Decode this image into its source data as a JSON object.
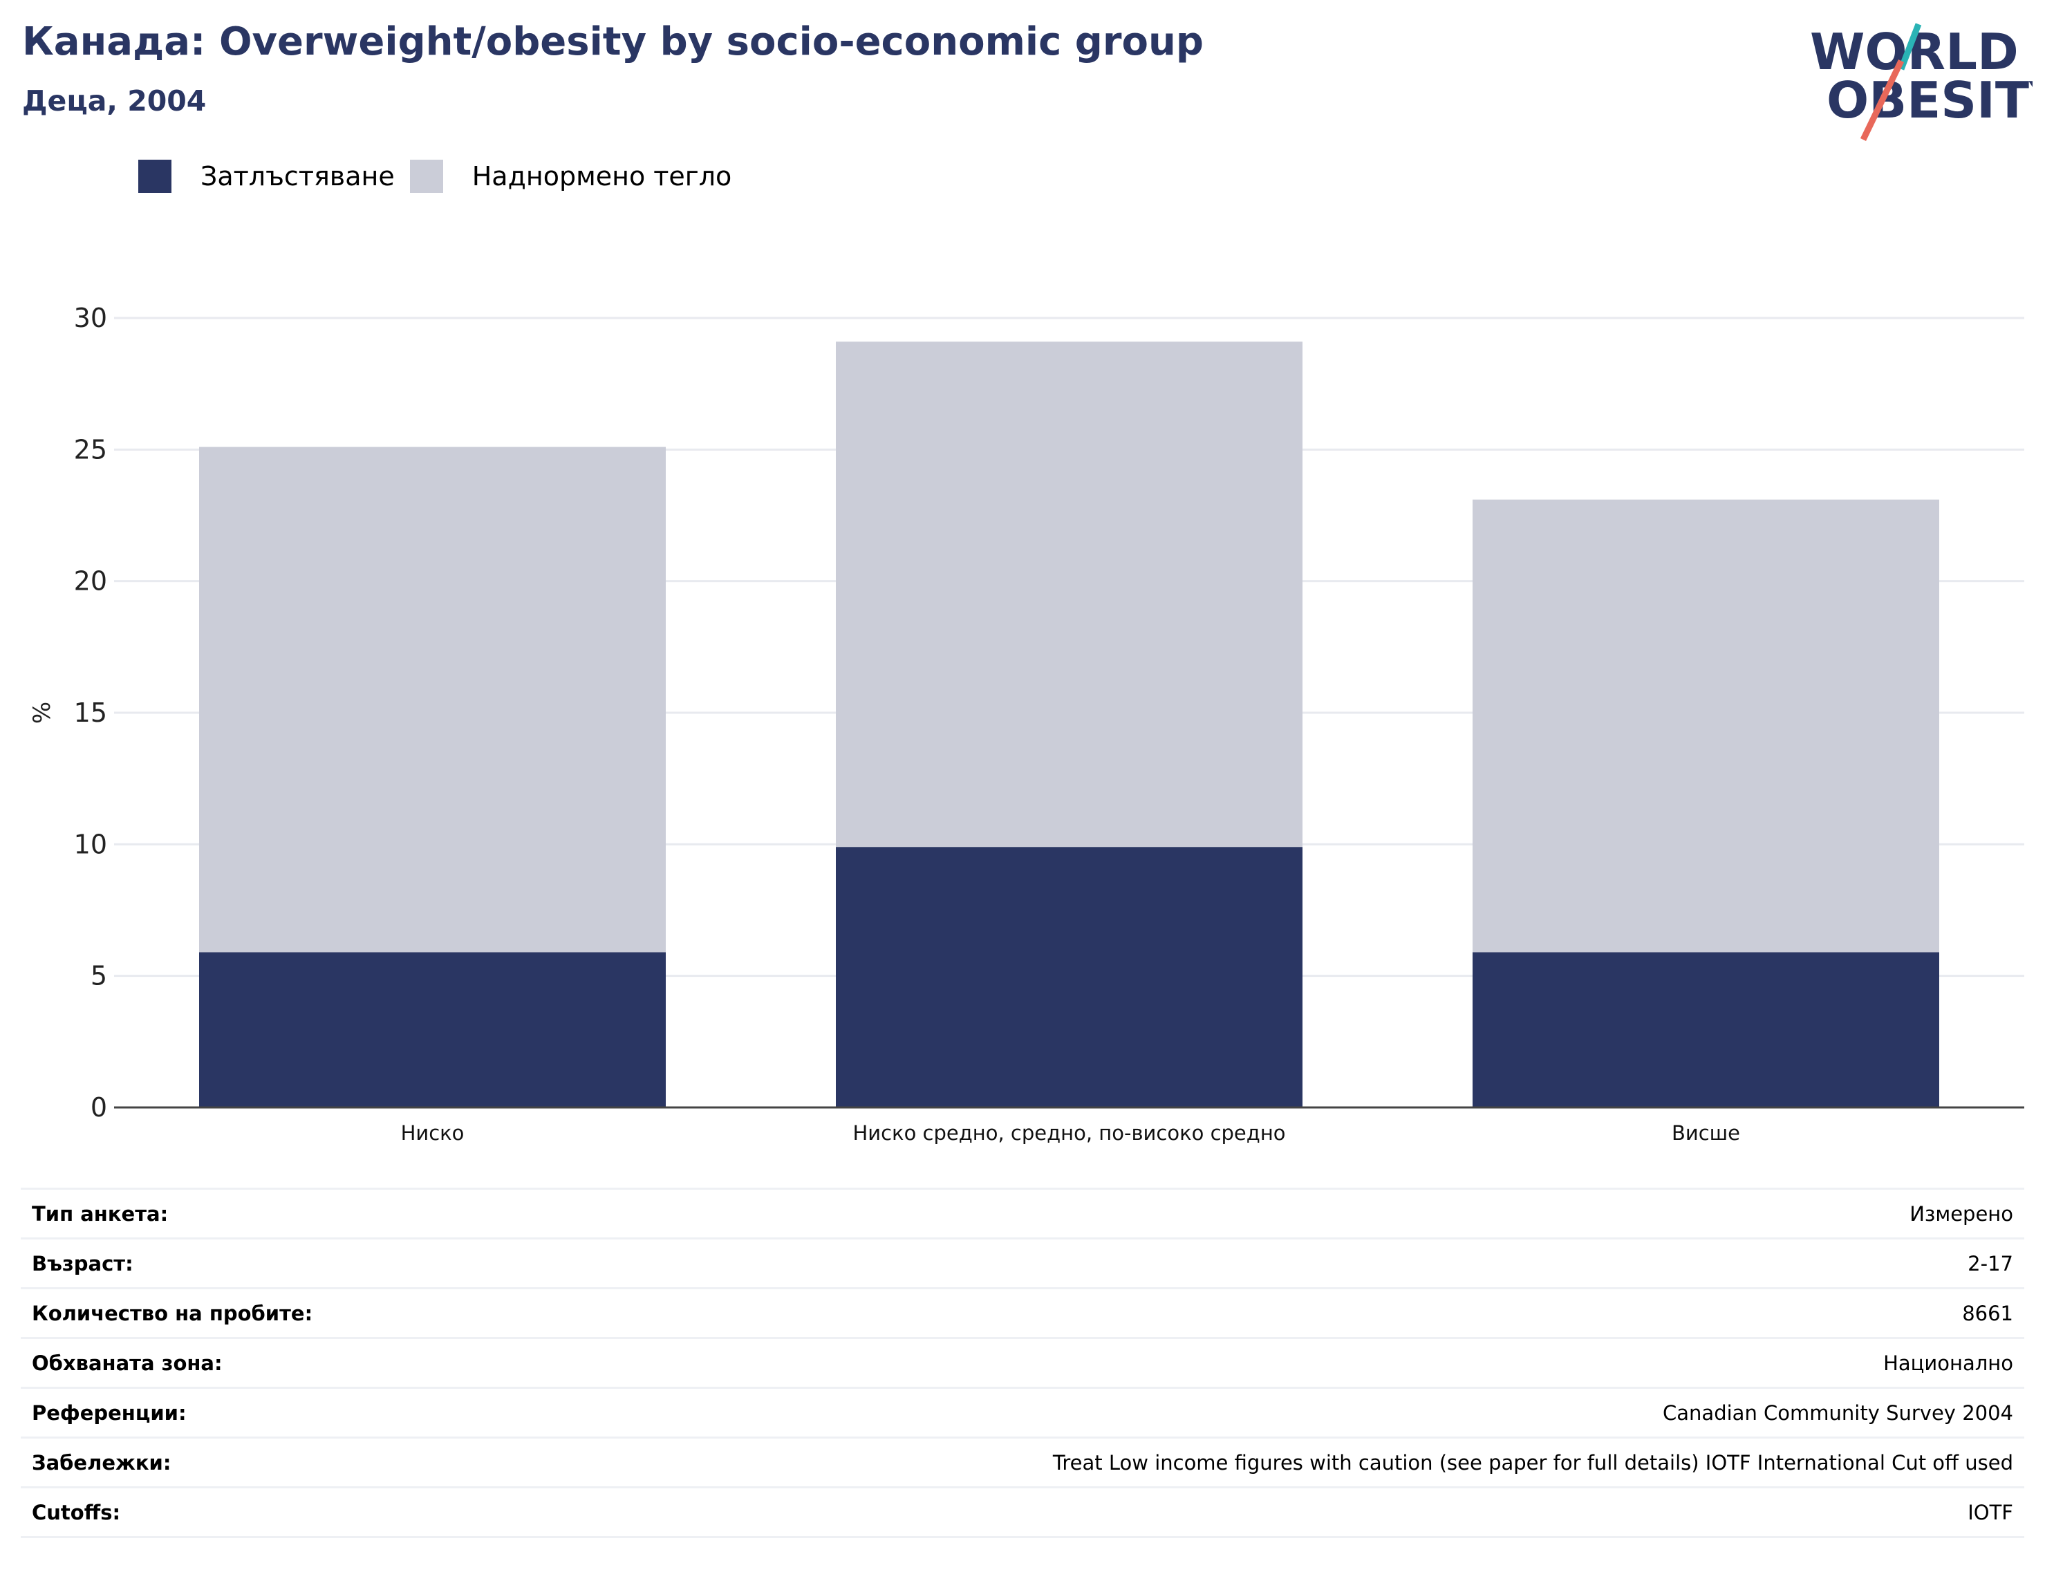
{
  "title": "Канада: Overweight/obesity by socio-economic group",
  "subtitle": "Деца, 2004",
  "logo": {
    "line1": "WORLD",
    "line2": "OBESITY",
    "accent_teal": "#2ab3b5",
    "accent_coral": "#e8685a",
    "text_color": "#2a3663"
  },
  "legend": [
    {
      "label": "Затлъстяване",
      "color": "#2a3663"
    },
    {
      "label": "Наднормено тегло",
      "color": "#cbcdd8"
    }
  ],
  "chart_data": {
    "type": "bar",
    "stacked": true,
    "categories": [
      "Ниско",
      "Ниско средно, средно, по-високо средно",
      "Висше"
    ],
    "series": [
      {
        "name": "Затлъстяване",
        "values": [
          5.9,
          9.9,
          5.9
        ],
        "color": "#2a3663"
      },
      {
        "name": "Наднормено тегло",
        "values": [
          19.2,
          19.2,
          17.2
        ],
        "color": "#cbcdd8"
      }
    ],
    "ylabel": "%",
    "ylim": [
      0,
      30
    ],
    "yticks": [
      0,
      5,
      10,
      15,
      20,
      25,
      30
    ],
    "grid": true,
    "legend_position": "top-left"
  },
  "info": [
    {
      "label": "Тип анкета:",
      "value": "Измерено"
    },
    {
      "label": "Възраст:",
      "value": "2-17"
    },
    {
      "label": "Количество на пробите:",
      "value": "8661"
    },
    {
      "label": "Обхваната зона:",
      "value": "Национално"
    },
    {
      "label": "Референции:",
      "value": "Canadian Community Survey 2004"
    },
    {
      "label": "Забележки:",
      "value": "Treat Low income figures with caution (see paper for full details) IOTF International Cut off used"
    },
    {
      "label": "Cutoffs:",
      "value": "IOTF"
    }
  ]
}
